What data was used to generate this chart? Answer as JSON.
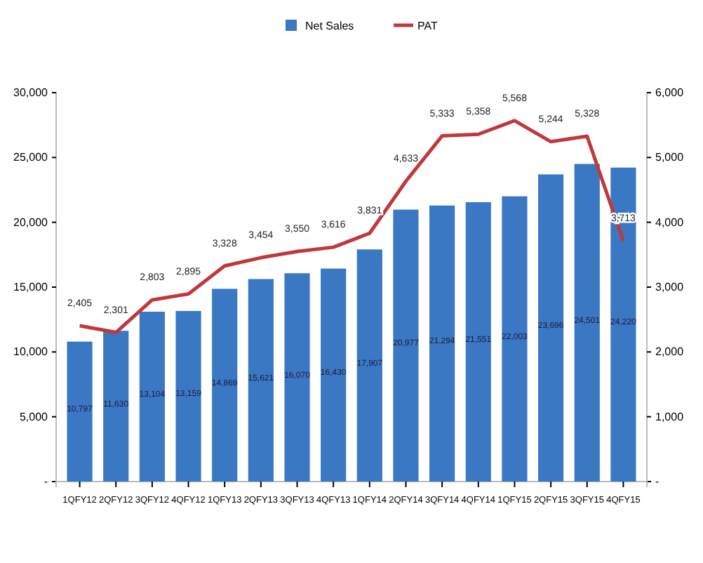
{
  "chart_data": {
    "type": "bar",
    "categories": [
      "1QFY12",
      "2QFY12",
      "3QFY12",
      "4QFY12",
      "1QFY13",
      "2QFY13",
      "3QFY13",
      "4QFY13",
      "1QFY14",
      "2QFY14",
      "3QFY14",
      "4QFY14",
      "1QFY15",
      "2QFY15",
      "3QFY15",
      "4QFY15"
    ],
    "series": [
      {
        "name": "Net Sales",
        "color": "#3a78c3",
        "values": [
          10797,
          11630,
          13104,
          13159,
          14869,
          15621,
          16070,
          16430,
          17907,
          20977,
          21294,
          21551,
          22003,
          23696,
          24501,
          24220
        ],
        "value_labels": [
          "10,797",
          "11,630",
          "13,104",
          "13,159",
          "14,869",
          "15,621",
          "16,070",
          "16,430",
          "17,907",
          "20,977",
          "21,294",
          "21,551",
          "22,003",
          "23,696",
          "24,501",
          "24,220"
        ]
      },
      {
        "name": "PAT",
        "type": "line",
        "axis": "y2",
        "color": "#c0383c",
        "values": [
          2405,
          2301,
          2803,
          2895,
          3328,
          3454,
          3550,
          3616,
          3831,
          4633,
          5333,
          5358,
          5568,
          5244,
          5328,
          3713
        ],
        "value_labels": [
          "2,405",
          "2,301",
          "2,803",
          "2,895",
          "3,328",
          "3,454",
          "3,550",
          "3,616",
          "3,831",
          "4,633",
          "5,333",
          "5,358",
          "5,568",
          "5,244",
          "5,328",
          "3,713"
        ]
      }
    ],
    "ylim": [
      0,
      30000
    ],
    "yticks": [
      {
        "value": 0,
        "label": "-"
      },
      {
        "value": 5000,
        "label": "5,000"
      },
      {
        "value": 10000,
        "label": "10,000"
      },
      {
        "value": 15000,
        "label": "15,000"
      },
      {
        "value": 20000,
        "label": "20,000"
      },
      {
        "value": 25000,
        "label": "25,000"
      },
      {
        "value": 30000,
        "label": "30,000"
      }
    ],
    "y2lim": [
      0,
      6000
    ],
    "y2ticks": [
      {
        "value": 0,
        "label": "-"
      },
      {
        "value": 1000,
        "label": "1,000"
      },
      {
        "value": 2000,
        "label": "2,000"
      },
      {
        "value": 3000,
        "label": "3,000"
      },
      {
        "value": 4000,
        "label": "4,000"
      },
      {
        "value": 5000,
        "label": "5,000"
      },
      {
        "value": 6000,
        "label": "6,000"
      }
    ],
    "legend": "top",
    "marker": "none",
    "grid": false
  }
}
